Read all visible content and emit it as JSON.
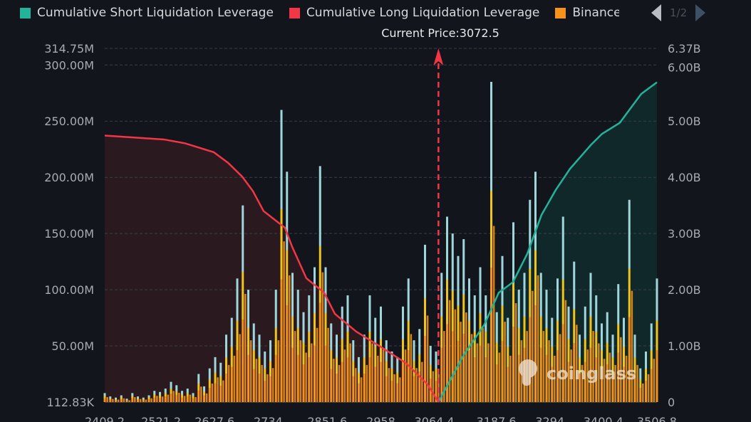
{
  "legend": {
    "items": [
      {
        "label": "Cumulative Short Liquidation Leverage",
        "color": "#22b39a"
      },
      {
        "label": "Cumulative Long Liquidation Leverage",
        "color": "#f23645"
      },
      {
        "label": "Binance",
        "color": "#f7931a"
      }
    ],
    "page": "1/2"
  },
  "current_price_label": "Current Price:3072.5",
  "watermark": "coinglass",
  "chart_data": {
    "type": "bar",
    "current_price": 3072.5,
    "x_ticks": [
      "2409.2",
      "2521.2",
      "2627.6",
      "2734",
      "2851.6",
      "2958",
      "3064.4",
      "3187.6",
      "3294",
      "3400.4",
      "3506.8"
    ],
    "xlim": [
      2409.2,
      3506.8
    ],
    "left_axis": {
      "ticks": [
        "112.83K",
        "50.00M",
        "100.00M",
        "150.00M",
        "200.00M",
        "250.00M",
        "300.00M",
        "314.75M"
      ],
      "ylim_millions": [
        0.11283,
        314.75
      ]
    },
    "right_axis": {
      "ticks": [
        "0",
        "1.00B",
        "2.00B",
        "3.00B",
        "4.00B",
        "5.00B",
        "6.00B",
        "6.37B"
      ],
      "ylim_billions": [
        0,
        6.37
      ]
    },
    "grid": true,
    "legend_placement": "top",
    "bar_colors": {
      "binance": "#f7931a",
      "middle": "#f0c419",
      "top": "#9fd6dc"
    },
    "bars_millions": [
      8,
      5,
      4,
      6,
      3,
      8,
      5,
      4,
      6,
      10,
      9,
      12,
      18,
      15,
      10,
      12,
      8,
      25,
      14,
      30,
      40,
      35,
      60,
      75,
      110,
      175,
      100,
      70,
      60,
      45,
      55,
      100,
      260,
      205,
      115,
      100,
      80,
      95,
      120,
      210,
      120,
      70,
      60,
      85,
      95,
      55,
      40,
      60,
      95,
      75,
      85,
      55,
      45,
      40,
      85,
      110,
      55,
      65,
      140,
      50,
      45,
      115,
      165,
      150,
      130,
      145,
      110,
      95,
      120,
      95,
      285,
      80,
      130,
      75,
      160,
      100,
      115,
      180,
      205,
      115,
      100,
      75,
      110,
      165,
      85,
      125,
      60,
      85,
      115,
      95,
      70,
      80,
      60,
      105,
      75,
      180,
      60,
      30,
      45,
      70,
      110
    ],
    "series": [
      {
        "name": "Cumulative Long Liquidation Leverage",
        "color": "#f23645",
        "points": [
          [
            2409.2,
            4.8
          ],
          [
            2526.7,
            4.73
          ],
          [
            2569.2,
            4.66
          ],
          [
            2625.9,
            4.5
          ],
          [
            2654.2,
            4.31
          ],
          [
            2682.5,
            4.06
          ],
          [
            2703.7,
            3.8
          ],
          [
            2724.9,
            3.44
          ],
          [
            2753.3,
            3.24
          ],
          [
            2767.4,
            3.14
          ],
          [
            2781.6,
            2.8
          ],
          [
            2809.9,
            2.23
          ],
          [
            2845.3,
            1.97
          ],
          [
            2866.6,
            1.59
          ],
          [
            2909.0,
            1.27
          ],
          [
            2965.7,
            0.95
          ],
          [
            3008.2,
            0.7
          ],
          [
            3050.7,
            0.32
          ],
          [
            3072.5,
            0
          ]
        ]
      },
      {
        "name": "Cumulative Short Liquidation Leverage",
        "color": "#22b39a",
        "points": [
          [
            3072.5,
            0
          ],
          [
            3121.5,
            0.83
          ],
          [
            3164.0,
            1.4
          ],
          [
            3192.3,
            1.97
          ],
          [
            3220.6,
            2.16
          ],
          [
            3249.0,
            2.67
          ],
          [
            3277.3,
            3.37
          ],
          [
            3305.6,
            3.82
          ],
          [
            3333.9,
            4.2
          ],
          [
            3376.4,
            4.64
          ],
          [
            3397.6,
            4.83
          ],
          [
            3433.0,
            5.03
          ],
          [
            3454.2,
            5.29
          ],
          [
            3475.5,
            5.55
          ],
          [
            3506.8,
            5.76
          ]
        ]
      }
    ]
  }
}
